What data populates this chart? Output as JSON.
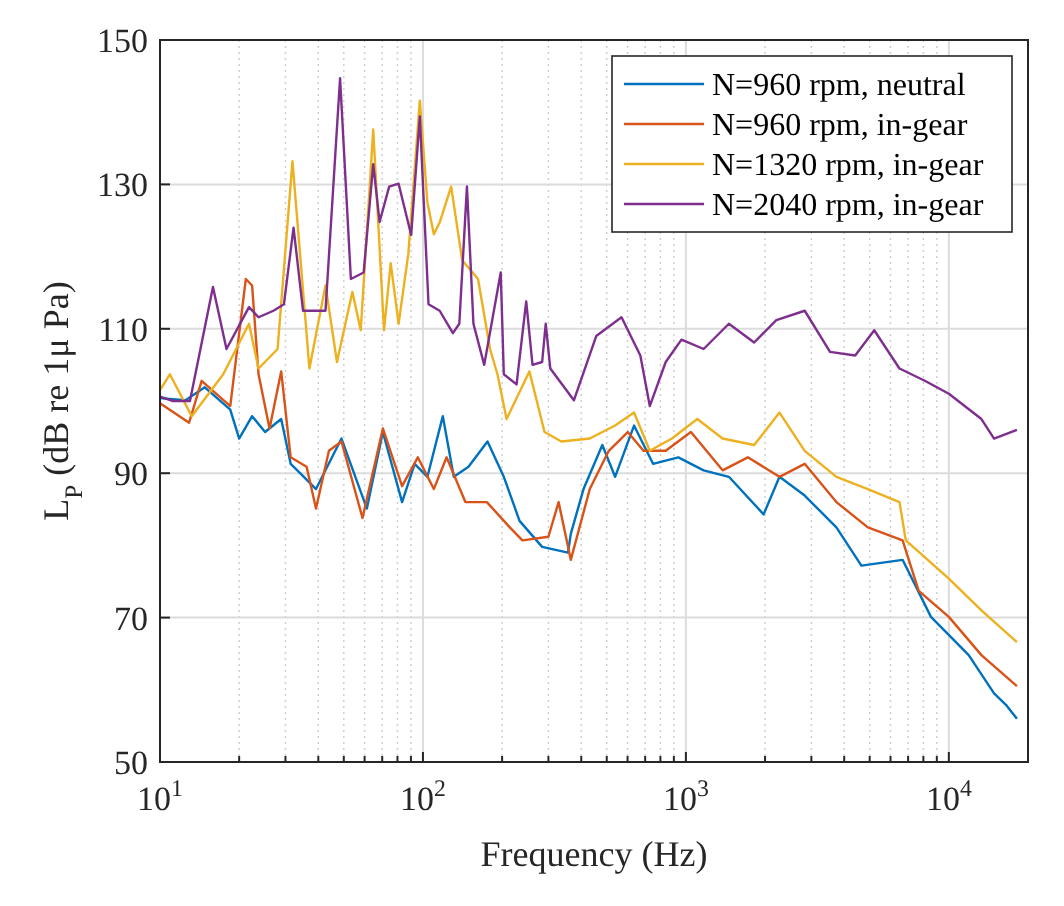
{
  "chart_data": {
    "type": "line",
    "xlabel": "Frequency (Hz)",
    "ylabel": "L$_{P}$ (dB re 1μ Pa)",
    "log": "x",
    "grid": true,
    "legend": "top right",
    "marker": "none",
    "line_style": "solid",
    "xlim": [
      10,
      20000
    ],
    "xticks": [
      {
        "value": 10,
        "label": "10$^{1}$"
      },
      {
        "value": 100,
        "label": "10$^{2}$"
      },
      {
        "value": 1000,
        "label": "10$^{3}$"
      },
      {
        "value": 10000,
        "label": "10$^{4}$"
      }
    ],
    "ylim": [
      50,
      150
    ],
    "yticks": [
      50,
      70,
      90,
      110,
      130,
      150
    ],
    "series": [
      {
        "name": "N=960 rpm, neutral",
        "color": "#0072bd",
        "x": [
          10,
          12.5,
          14.8,
          18.5,
          20,
          22.4,
          25.1,
          28.9,
          31.4,
          34.1,
          39.2,
          49,
          61.2,
          70.4,
          83.3,
          93,
          104,
          119,
          131,
          149,
          176,
          203,
          233,
          284,
          356,
          365,
          408,
          481,
          538,
          635,
          750,
          936,
          1168,
          1457,
          1975,
          2270,
          2830,
          3735,
          4650,
          6670,
          8550,
          11900,
          14860,
          16600,
          18150
        ],
        "values": [
          100.4,
          100.1,
          101.9,
          98.8,
          94.8,
          97.9,
          95.7,
          97.5,
          91.3,
          90,
          87.8,
          94.8,
          85.1,
          95.7,
          86,
          91.3,
          89.5,
          97.9,
          89.5,
          90.9,
          94.4,
          89.5,
          83.4,
          79.8,
          79,
          81.6,
          87.8,
          93.9,
          89.5,
          96.6,
          91.3,
          92.2,
          90.4,
          89.5,
          84.3,
          89.5,
          86.9,
          82.5,
          77.2,
          78,
          70.1,
          64.8,
          59.5,
          57.8,
          56
        ]
      },
      {
        "name": "N=960 rpm, in-gear",
        "color": "#d95319",
        "x": [
          10,
          12.9,
          14.4,
          18.5,
          21.2,
          22.4,
          23.7,
          26.1,
          28.9,
          31.4,
          36.1,
          39.2,
          43.9,
          49,
          58.9,
          70.4,
          83.3,
          95.6,
          110,
          123,
          145,
          175,
          214,
          239,
          300,
          328,
          365,
          431,
          509,
          601,
          690,
          838,
          1045,
          1379,
          1720,
          2270,
          2830,
          3735,
          4920,
          6670,
          7680,
          10000,
          13300,
          18150
        ],
        "values": [
          99.7,
          97,
          102.8,
          99.3,
          116.9,
          116,
          103.7,
          96.2,
          104.1,
          92.2,
          90.9,
          85.1,
          93.1,
          94.4,
          83.8,
          96.2,
          88.2,
          92.2,
          87.8,
          92.2,
          86,
          86,
          82.5,
          80.7,
          81.2,
          86,
          78,
          87.8,
          93.1,
          95.7,
          93.1,
          93.1,
          95.7,
          90.4,
          92.2,
          89.5,
          91.3,
          86,
          82.5,
          80.7,
          73.7,
          70.1,
          64.8,
          60.5
        ]
      },
      {
        "name": "N=1320 rpm, in-gear",
        "color": "#edb120",
        "x": [
          10,
          10.9,
          13.2,
          17.4,
          21.8,
          23.7,
          28,
          31.9,
          37,
          42.6,
          47.1,
          53.9,
          58,
          64.7,
          71.1,
          75.4,
          80.8,
          88,
          97.3,
          104,
          110,
          116,
          128,
          141,
          162,
          180,
          192,
          208,
          254,
          290,
          336,
          431,
          538,
          635,
          729,
          885,
          1105,
          1379,
          1818,
          2270,
          2830,
          3735,
          4920,
          6490,
          6860,
          10000,
          13300,
          18150
        ],
        "values": [
          101.5,
          103.7,
          97.9,
          103.7,
          110.7,
          104.5,
          107.2,
          133.2,
          104.5,
          116,
          105.4,
          115.1,
          109.8,
          137.6,
          109.8,
          119.1,
          110.7,
          120.4,
          141.6,
          127.5,
          123.1,
          124.8,
          129.7,
          119.5,
          116.9,
          107.2,
          103.7,
          97.5,
          104.1,
          95.7,
          94.4,
          94.8,
          96.6,
          98.4,
          93.1,
          94.8,
          97.5,
          94.8,
          93.9,
          98.4,
          93.1,
          89.5,
          87.8,
          86,
          80.7,
          75.4,
          71,
          66.6
        ]
      },
      {
        "name": "N=2040 rpm, in-gear",
        "color": "#7e2f8e",
        "x": [
          10,
          11.2,
          13,
          15.9,
          17.9,
          21.8,
          23.7,
          27,
          29.6,
          32.2,
          35,
          42.6,
          48.4,
          53.2,
          59.5,
          64.7,
          68.4,
          74.4,
          80.8,
          90.2,
          97.3,
          105,
          115.8,
          130,
          137.5,
          147,
          155.6,
          171,
          197.6,
          203,
          227,
          247,
          261,
          284,
          293,
          305,
          375,
          456,
          569,
          671,
          729,
          838,
          962,
          1168,
          1457,
          1818,
          2207,
          2831,
          3533,
          4404,
          5203,
          6490,
          8100,
          10000,
          13300,
          14860,
          18150
        ],
        "values": [
          100.6,
          100,
          100,
          115.8,
          107.2,
          113,
          111.6,
          112.5,
          113.4,
          124,
          112.5,
          112.5,
          144.7,
          116.9,
          117.8,
          132.8,
          124.8,
          129.7,
          130.1,
          123,
          139.4,
          113.4,
          112.5,
          109.4,
          110.7,
          129.7,
          110.7,
          105,
          117.8,
          103.7,
          102.3,
          113.8,
          105,
          105.4,
          110.7,
          104.5,
          100.1,
          109,
          111.6,
          106.3,
          99.3,
          105.4,
          108.5,
          107.2,
          110.7,
          108.1,
          111.2,
          112.5,
          106.8,
          106.3,
          109.8,
          104.5,
          102.8,
          101,
          97.5,
          94.8,
          96
        ]
      }
    ]
  }
}
